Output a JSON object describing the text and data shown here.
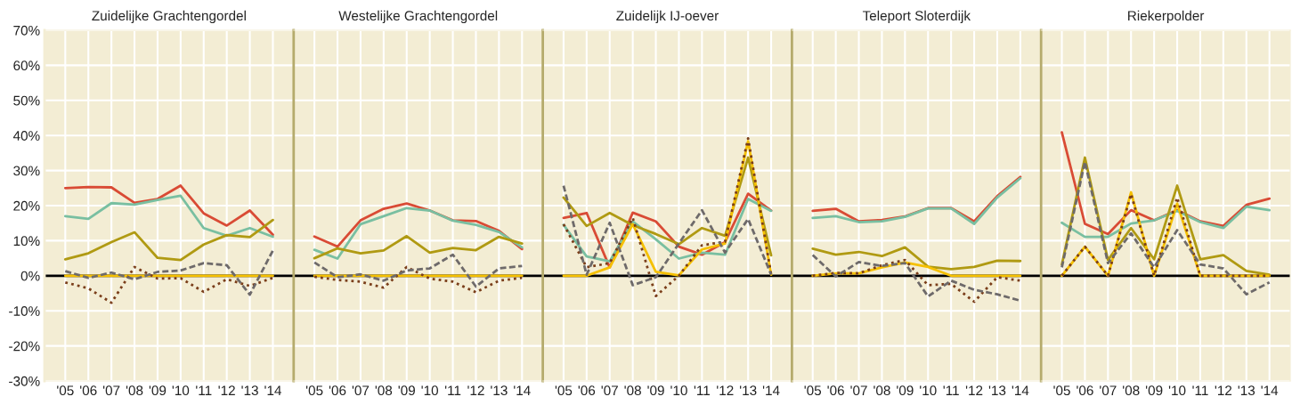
{
  "chart_data": [
    {
      "type": "line",
      "title": "Zuidelijke Grachtengordel",
      "categories": [
        "'05",
        "'06",
        "'07",
        "'08",
        "'09",
        "'10",
        "'11",
        "'12",
        "'13",
        "'14"
      ],
      "ylim": [
        -30,
        70
      ],
      "yticks": [
        {
          "value": -30,
          "label": "-30%"
        },
        {
          "value": -20,
          "label": "-20%"
        },
        {
          "value": -10,
          "label": "-10%"
        },
        {
          "value": 0,
          "label": "0%"
        },
        {
          "value": 10,
          "label": "10%"
        },
        {
          "value": 20,
          "label": "20%"
        },
        {
          "value": 30,
          "label": "30%"
        },
        {
          "value": 40,
          "label": "40%"
        },
        {
          "value": 50,
          "label": "50%"
        },
        {
          "value": 60,
          "label": "60%"
        },
        {
          "value": 70,
          "label": "70%"
        }
      ],
      "grid": true,
      "ref_lines": [
        {
          "axis": "y",
          "value": 0,
          "color": "#000000"
        }
      ],
      "series": [
        {
          "color": "#d94b35",
          "line_style": "solid",
          "values": [
            25,
            25.3,
            25.2,
            20.8,
            21.9,
            25.7,
            17.8,
            14.3,
            18.6,
            11.7
          ]
        },
        {
          "color": "#79bfa1",
          "line_style": "solid",
          "values": [
            17,
            16.2,
            20.7,
            20.3,
            21.6,
            22.8,
            13.6,
            11.4,
            13.6,
            11.1
          ]
        },
        {
          "color": "#b09a12",
          "line_style": "solid",
          "values": [
            4.7,
            6.4,
            9.6,
            12.4,
            5.1,
            4.5,
            8.9,
            11.6,
            11,
            15.9
          ]
        },
        {
          "color": "#f5c000",
          "line_style": "solid",
          "values": [
            0,
            0,
            0,
            0,
            0,
            0,
            0,
            0,
            0,
            0
          ]
        },
        {
          "color": "#7a3e1a",
          "line_style": "dotted",
          "values": [
            -1.9,
            -3.6,
            -7.7,
            2.5,
            -0.8,
            -0.7,
            -4.6,
            -1,
            -2.9,
            -0.6
          ]
        },
        {
          "color": "#6e6a6a",
          "line_style": "dashed",
          "values": [
            1.3,
            -0.6,
            0.9,
            -1,
            1.1,
            1.5,
            3.6,
            3,
            -5.4,
            7.2
          ]
        }
      ]
    },
    {
      "type": "line",
      "title": "Westelijke Grachtengordel",
      "categories": [
        "'05",
        "'06",
        "'07",
        "'08",
        "'09",
        "'10",
        "'11",
        "'12",
        "'13",
        "'14"
      ],
      "ylim": [
        -30,
        70
      ],
      "tick_labels": "x",
      "grid": true,
      "ref_lines": [
        {
          "axis": "y",
          "value": 0,
          "color": "#000000"
        }
      ],
      "series": [
        {
          "color": "#d94b35",
          "line_style": "solid",
          "values": [
            11.2,
            8.3,
            15.8,
            19.1,
            20.6,
            18.6,
            15.8,
            15.6,
            12.8,
            7.6
          ]
        },
        {
          "color": "#79bfa1",
          "line_style": "solid",
          "values": [
            7.4,
            4.9,
            14.7,
            17,
            19.3,
            18.6,
            15.7,
            14.5,
            12.5,
            8.1
          ]
        },
        {
          "color": "#b09a12",
          "line_style": "solid",
          "values": [
            5,
            7.8,
            6.4,
            7.2,
            11.3,
            6.6,
            7.9,
            7.3,
            11.1,
            9.2
          ]
        },
        {
          "color": "#f5c000",
          "line_style": "solid",
          "values": [
            0,
            0,
            0,
            0,
            0,
            0,
            0,
            0,
            0,
            0
          ]
        },
        {
          "color": "#7a3e1a",
          "line_style": "dotted",
          "values": [
            -0.3,
            -1.2,
            -1.7,
            -3.4,
            2.5,
            -0.8,
            -1.7,
            -4.7,
            -1.4,
            -0.6
          ]
        },
        {
          "color": "#6e6a6a",
          "line_style": "dashed",
          "values": [
            3.8,
            -0.4,
            0.4,
            -1.4,
            1.5,
            2.1,
            6,
            -3.1,
            2.1,
            2.8
          ]
        }
      ]
    },
    {
      "type": "line",
      "title": "Zuidelijk IJ-oever",
      "categories": [
        "'05",
        "'06",
        "'07",
        "'08",
        "'09",
        "'10",
        "'11",
        "'12",
        "'13",
        "'14"
      ],
      "ylim": [
        -30,
        70
      ],
      "tick_labels": "x",
      "grid": true,
      "ref_lines": [
        {
          "axis": "y",
          "value": 0,
          "color": "#000000"
        }
      ],
      "series": [
        {
          "color": "#d94b35",
          "line_style": "solid",
          "values": [
            16.5,
            17.9,
            2.4,
            18,
            15.5,
            8.3,
            6,
            9.6,
            23.4,
            18.6
          ]
        },
        {
          "color": "#79bfa1",
          "line_style": "solid",
          "values": [
            14.5,
            5.5,
            4.1,
            15.5,
            10.4,
            4.9,
            6.6,
            6,
            21.9,
            18.5
          ]
        },
        {
          "color": "#b09a12",
          "line_style": "solid",
          "values": [
            22.3,
            14.2,
            17.9,
            14.4,
            11.9,
            9,
            13.6,
            11.4,
            33.7,
            5.8
          ]
        },
        {
          "color": "#f5c000",
          "line_style": "solid",
          "values": [
            0,
            0,
            2.4,
            14.7,
            1.1,
            0.1,
            7.5,
            9.2,
            38.4,
            0.3
          ]
        },
        {
          "color": "#7a3e1a",
          "line_style": "dotted",
          "values": [
            14.7,
            2.4,
            3.6,
            16.5,
            -5.8,
            0,
            8.7,
            9.7,
            39.2,
            0.3
          ]
        },
        {
          "color": "#6e6a6a",
          "line_style": "dashed",
          "values": [
            25.7,
            0.3,
            15.1,
            -2.7,
            -0.4,
            9.2,
            18.7,
            6.6,
            16.2,
            0.3
          ]
        }
      ]
    },
    {
      "type": "line",
      "title": "Teleport Sloterdijk",
      "categories": [
        "'05",
        "'06",
        "'07",
        "'08",
        "'09",
        "'10",
        "'11",
        "'12",
        "'13",
        "'14"
      ],
      "ylim": [
        -30,
        70
      ],
      "tick_labels": "x",
      "grid": true,
      "ref_lines": [
        {
          "axis": "y",
          "value": 0,
          "color": "#000000"
        }
      ],
      "series": [
        {
          "color": "#d94b35",
          "line_style": "solid",
          "values": [
            18.5,
            19.1,
            15.5,
            15.9,
            16.9,
            19.3,
            19.3,
            15.5,
            22.7,
            28.2
          ]
        },
        {
          "color": "#79bfa1",
          "line_style": "solid",
          "values": [
            16.5,
            17,
            15.3,
            15.5,
            16.8,
            19.2,
            19.2,
            14.8,
            22.3,
            27.8
          ]
        },
        {
          "color": "#b09a12",
          "line_style": "solid",
          "values": [
            7.7,
            6,
            6.8,
            5.6,
            8.1,
            2.6,
            1.9,
            2.5,
            4.3,
            4.2
          ]
        },
        {
          "color": "#f5c000",
          "line_style": "solid",
          "values": [
            0,
            0.7,
            0.7,
            2.4,
            3.8,
            2.5,
            0,
            0,
            0,
            0
          ]
        },
        {
          "color": "#7a3e1a",
          "line_style": "dotted",
          "values": [
            0,
            0.8,
            0.7,
            3,
            4.5,
            -2.7,
            -2.3,
            -7.4,
            -0.4,
            -1.4
          ]
        },
        {
          "color": "#6e6a6a",
          "line_style": "dashed",
          "values": [
            5.9,
            -0.2,
            3.9,
            2.8,
            3.6,
            -5.9,
            -1.4,
            -4,
            -5.3,
            -7.1
          ]
        }
      ]
    },
    {
      "type": "line",
      "title": "Riekerpolder",
      "categories": [
        "'05",
        "'06",
        "'07",
        "'08",
        "'09",
        "'10",
        "'11",
        "'12",
        "'13",
        "'14"
      ],
      "ylim": [
        -30,
        70
      ],
      "tick_labels": "x",
      "grid": true,
      "ref_lines": [
        {
          "axis": "y",
          "value": 0,
          "color": "#000000"
        }
      ],
      "series": [
        {
          "color": "#d94b35",
          "line_style": "solid",
          "values": [
            40.9,
            14.8,
            11.9,
            18.7,
            15.8,
            18.7,
            15.5,
            14.2,
            20.2,
            22
          ]
        },
        {
          "color": "#79bfa1",
          "line_style": "solid",
          "values": [
            15.1,
            11.1,
            11.1,
            14.9,
            15.8,
            18.5,
            15.3,
            13.6,
            19.7,
            18.7
          ]
        },
        {
          "color": "#b09a12",
          "line_style": "solid",
          "values": [
            3.2,
            33.7,
            4.5,
            13.6,
            4.7,
            25.7,
            4.7,
            5.9,
            1.4,
            0.3
          ]
        },
        {
          "color": "#f5c000",
          "line_style": "solid",
          "values": [
            0,
            8.3,
            0,
            23.8,
            0,
            20.6,
            0,
            0,
            0,
            0
          ]
        },
        {
          "color": "#7a3e1a",
          "line_style": "dotted",
          "values": [
            0,
            8.3,
            0,
            23.3,
            0,
            22.3,
            0,
            0,
            0,
            0
          ]
        },
        {
          "color": "#6e6a6a",
          "line_style": "dashed",
          "values": [
            2.4,
            32.5,
            3.6,
            12.1,
            2.4,
            13,
            3.2,
            2.1,
            -5.3,
            -1.9
          ]
        }
      ]
    }
  ]
}
